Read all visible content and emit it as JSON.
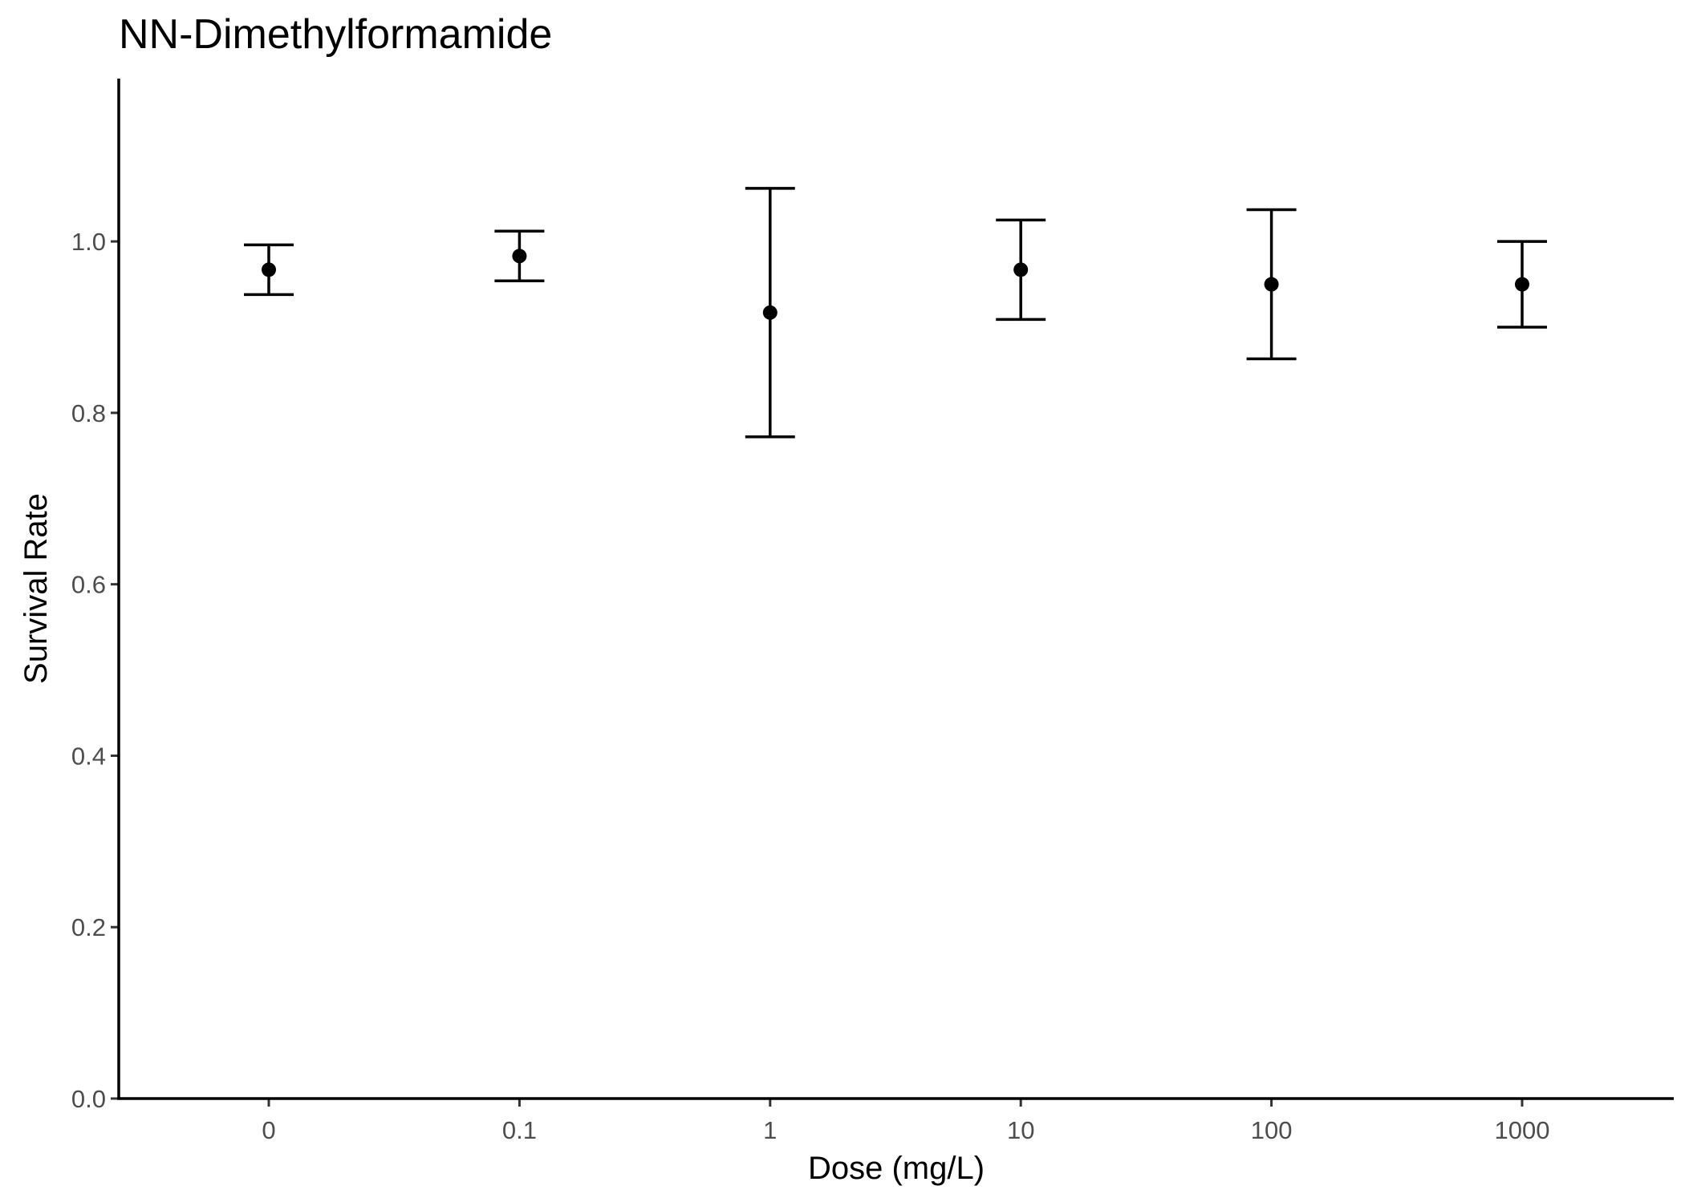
{
  "chart_data": {
    "type": "scatter",
    "title": "NN-Dimethylformamide",
    "xlabel": "Dose (mg/L)",
    "ylabel": "Survival Rate",
    "categories": [
      "0",
      "0.1",
      "1",
      "10",
      "100",
      "1000"
    ],
    "series": [
      {
        "values": [
          0.967,
          0.983,
          0.917,
          0.967,
          0.95,
          0.95
        ],
        "lower": [
          0.938,
          0.954,
          0.772,
          0.909,
          0.863,
          0.9
        ],
        "upper": [
          0.996,
          1.012,
          1.062,
          1.025,
          1.037,
          1.0
        ]
      }
    ],
    "ylim": [
      0,
      1.19
    ],
    "yticks": [
      0.0,
      0.2,
      0.4,
      0.6,
      0.8,
      1.0
    ],
    "ytick_labels": [
      "0.0",
      "0.2",
      "0.4",
      "0.6",
      "0.8",
      "1.0"
    ],
    "grid": false,
    "legend": "none",
    "colors": {
      "point": "#000000",
      "errorbar": "#000000",
      "axis": "#000000",
      "tick_label": "#4d4d4d"
    }
  }
}
